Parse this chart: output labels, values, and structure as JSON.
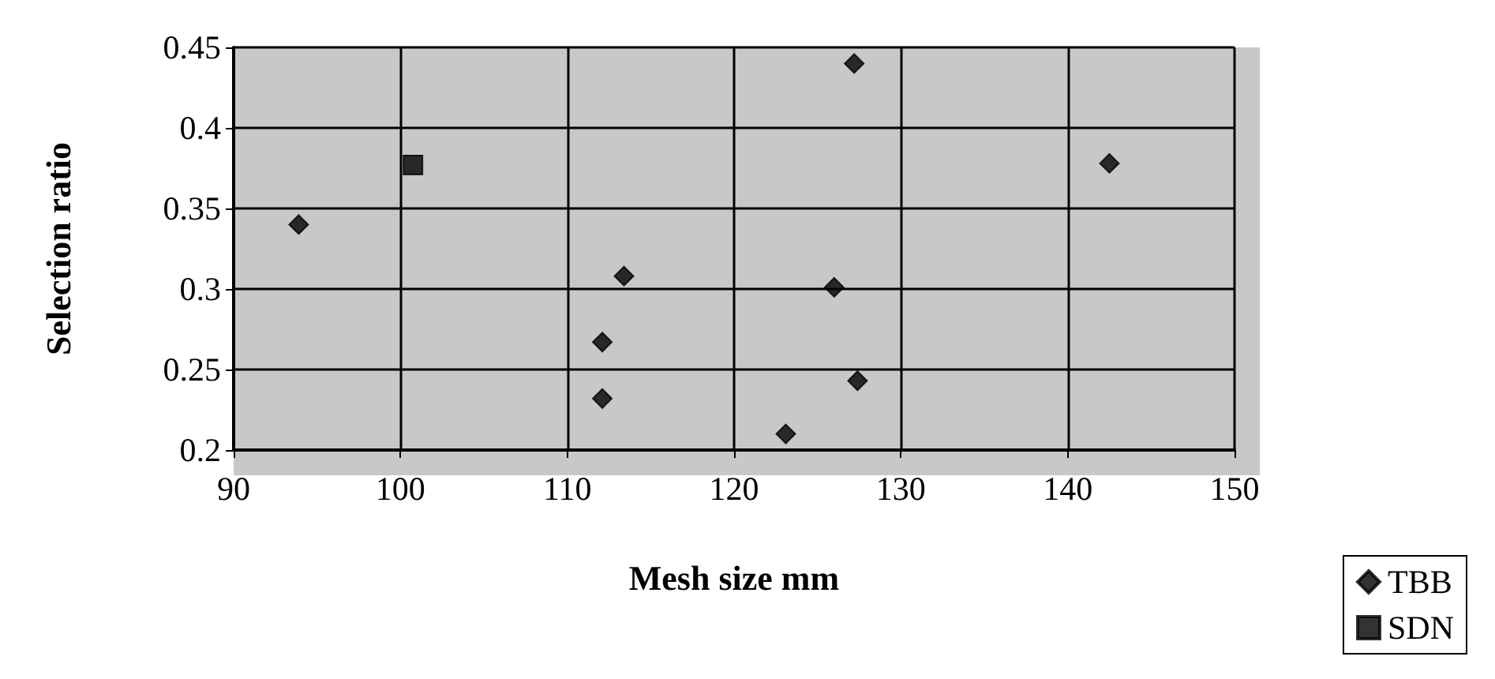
{
  "chart_data": {
    "type": "scatter",
    "xlabel": "Mesh size mm",
    "ylabel": "Selection ratio",
    "xlim": [
      90,
      150
    ],
    "xticks": [
      90,
      100,
      110,
      120,
      130,
      140,
      150
    ],
    "ylim": [
      0.2,
      0.45
    ],
    "yticks": [
      0.2,
      0.25,
      0.3,
      0.35,
      0.4,
      0.45
    ],
    "grid": true,
    "legend": "bottom right",
    "series": [
      {
        "name": "TBB",
        "color": "#000000",
        "marker": "diamond",
        "x": [
          93.9,
          113.4,
          112.1,
          112.1,
          127.2,
          142.5,
          126.0,
          127.4,
          123.1
        ],
        "values": [
          0.34,
          0.308,
          0.267,
          0.232,
          0.44,
          0.378,
          0.301,
          0.243,
          0.21
        ]
      },
      {
        "name": "SDN",
        "color": "#000000",
        "marker": "square",
        "x": [
          100.75
        ],
        "values": [
          0.377
        ]
      }
    ]
  }
}
